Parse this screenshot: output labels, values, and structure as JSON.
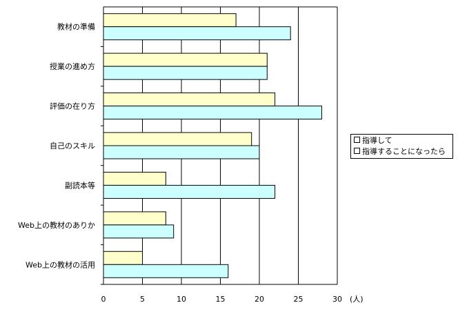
{
  "chart_data": {
    "type": "bar",
    "orientation": "horizontal",
    "categories": [
      "教材の準備",
      "授業の進め方",
      "評価の在り方",
      "自己のスキル",
      "副読本等",
      "Web上の教材のありか",
      "Web上の教材の活用"
    ],
    "series": [
      {
        "name": "指導して",
        "color": "#ffffcc",
        "values": [
          17,
          21,
          22,
          19,
          8,
          8,
          5
        ]
      },
      {
        "name": "指導することになったら",
        "color": "#ccffff",
        "values": [
          24,
          21,
          28,
          20,
          22,
          9,
          16
        ]
      }
    ],
    "xlim": [
      0,
      30
    ],
    "xticks": [
      0,
      5,
      10,
      15,
      20,
      25,
      30
    ],
    "xunit": "(人)",
    "grid": true,
    "legend_position": "right"
  }
}
